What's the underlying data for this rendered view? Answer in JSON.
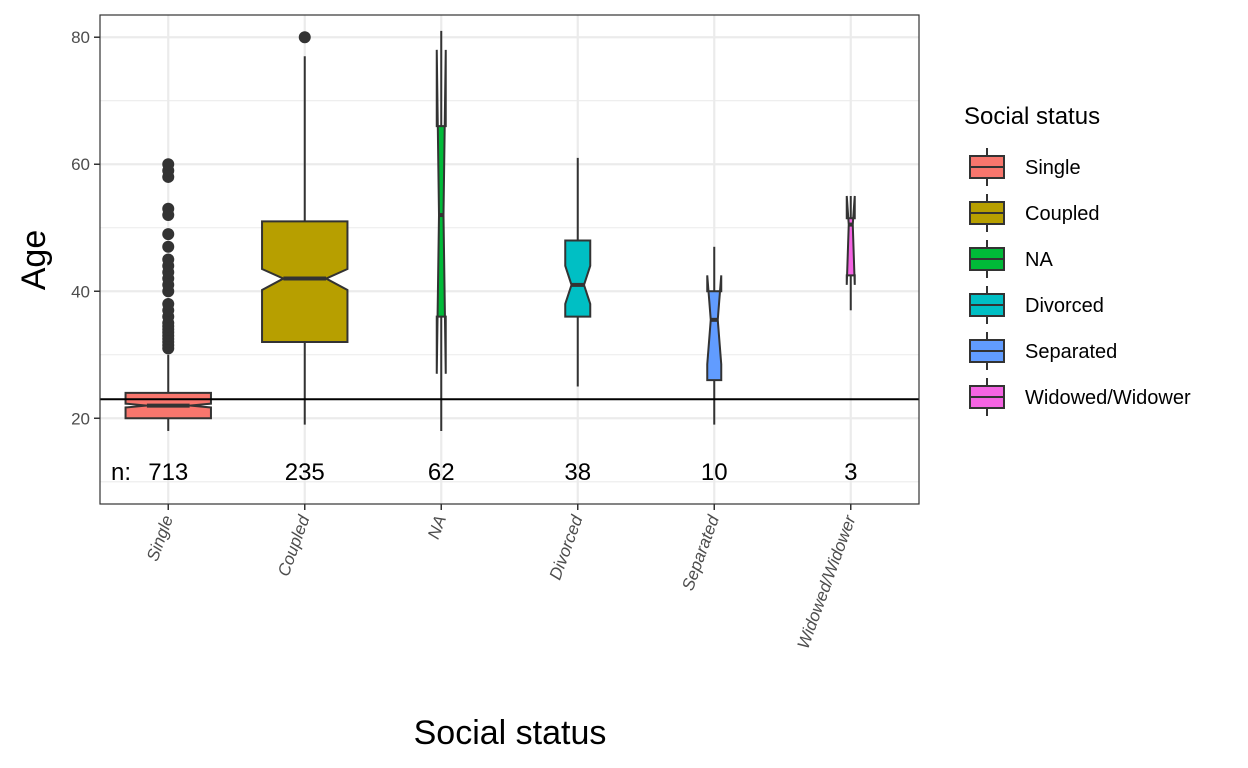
{
  "chart_data": {
    "type": "boxplot",
    "title": "",
    "xlabel": "Social status",
    "ylabel": "Age",
    "ylim": [
      6.5,
      83.5
    ],
    "yticks": [
      20,
      40,
      60,
      80
    ],
    "grid": true,
    "notched": true,
    "reference_line": {
      "y": 23,
      "color": "#000000"
    },
    "categories": [
      "Single",
      "Coupled",
      "NA",
      "Divorced",
      "Separated",
      "Widowed/Widower"
    ],
    "colors": [
      "#F8766D",
      "#B79F00",
      "#00BA38",
      "#00BFC4",
      "#619CFF",
      "#F564E3"
    ],
    "series": [
      {
        "name": "Single",
        "n": 713,
        "whisker_low": 18,
        "q1": 20,
        "median": 22,
        "q3": 24,
        "whisker_high": 30,
        "notch_low": 21.7,
        "notch_high": 22.3,
        "outliers": [
          31,
          31.5,
          32,
          32.5,
          33,
          33.5,
          34,
          34.5,
          35,
          36,
          37,
          38,
          40,
          41,
          42,
          43,
          44,
          45,
          47,
          49,
          52,
          53,
          58,
          59,
          60
        ]
      },
      {
        "name": "Coupled",
        "n": 235,
        "whisker_low": 19,
        "q1": 32,
        "median": 42,
        "q3": 51,
        "whisker_high": 77,
        "notch_low": 40.2,
        "notch_high": 43.5,
        "outliers": [
          80
        ]
      },
      {
        "name": "NA",
        "n": 62,
        "whisker_low": 18,
        "q1": 36,
        "median": 52,
        "q3": 66,
        "whisker_high": 81,
        "notch_low": 27,
        "notch_high": 78,
        "outliers": []
      },
      {
        "name": "Divorced",
        "n": 38,
        "whisker_low": 25,
        "q1": 36,
        "median": 41,
        "q3": 48,
        "whisker_high": 61,
        "notch_low": 38,
        "notch_high": 44,
        "outliers": []
      },
      {
        "name": "Separated",
        "n": 10,
        "whisker_low": 19,
        "q1": 26,
        "median": 35.5,
        "q3": 40,
        "whisker_high": 47,
        "notch_low": 28.5,
        "notch_high": 42.5,
        "outliers": []
      },
      {
        "name": "Widowed/Widower",
        "n": 3,
        "whisker_low": 37,
        "q1": 42.5,
        "median": 50.5,
        "q3": 51.5,
        "whisker_high": 55,
        "notch_low": 41,
        "notch_high": 55,
        "outliers": []
      }
    ],
    "n_prefix": "n:",
    "legend": {
      "title": "Social status",
      "position": "right",
      "entries": [
        "Single",
        "Coupled",
        "NA",
        "Divorced",
        "Separated",
        "Widowed/Widower"
      ]
    }
  }
}
